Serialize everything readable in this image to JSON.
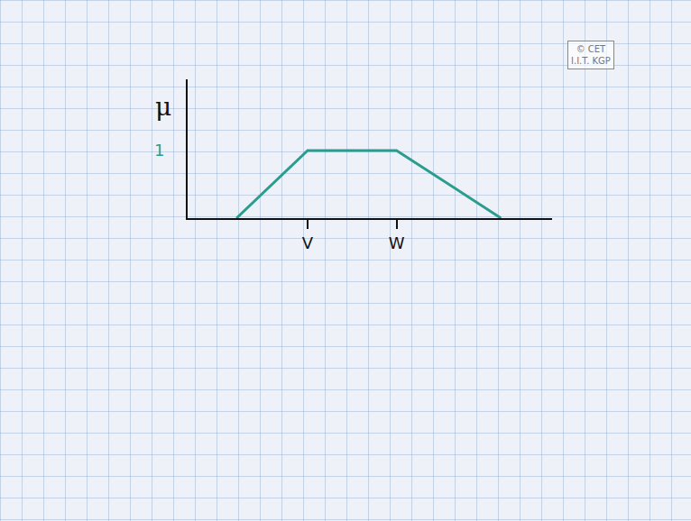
{
  "chart_data": {
    "type": "line",
    "ylabel": "μ",
    "x": [
      1.1,
      2.7,
      4.7,
      7.05
    ],
    "values": [
      0,
      1,
      1,
      0
    ],
    "color": "#2a9d8f",
    "xlim": [
      0,
      8.2
    ],
    "xticks": [
      {
        "value": 2.7,
        "label": "V"
      },
      {
        "value": 4.7,
        "label": "W"
      }
    ],
    "ylim": [
      0,
      2.05
    ],
    "yticks": [
      1
    ],
    "grid": false,
    "annotations": [
      "© CET",
      "I.I.T. KGP"
    ]
  }
}
